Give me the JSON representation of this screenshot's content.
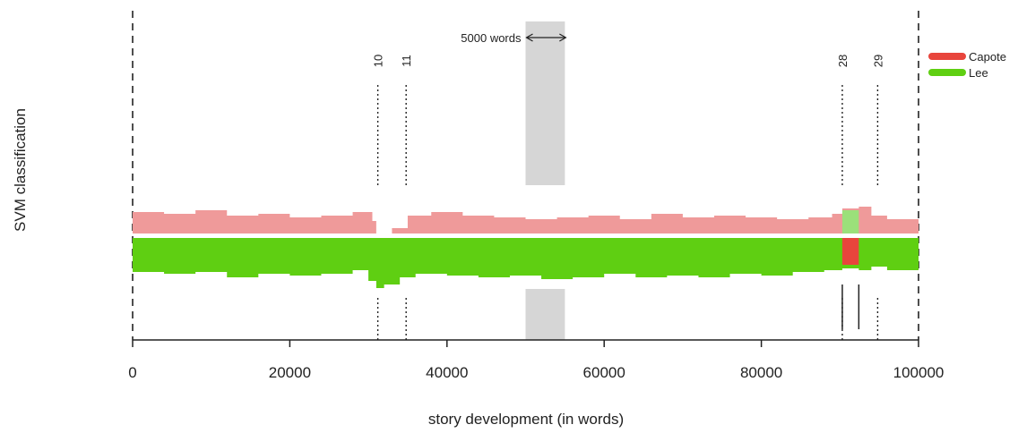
{
  "chart_data": {
    "type": "area",
    "ylabel": "SVM classification",
    "xlabel": "story development (in words)",
    "xlim": [
      0,
      100000
    ],
    "x_ticks": [
      0,
      20000,
      40000,
      60000,
      80000,
      100000
    ],
    "x_tick_labels": [
      "0",
      "20000",
      "40000",
      "60000",
      "80000",
      "100000"
    ],
    "legend": {
      "position": "top-right",
      "entries": [
        {
          "label": "Capote",
          "color": "#e8453c"
        },
        {
          "label": "Lee",
          "color": "#5fcf12"
        }
      ]
    },
    "window_annotation": {
      "label": "5000 words",
      "start": 50000,
      "end": 55000,
      "color": "#d6d6d6"
    },
    "chapter_markers": [
      {
        "label": "10",
        "x": 31200
      },
      {
        "label": "11",
        "x": 34800
      },
      {
        "label": "28",
        "x": 90300
      },
      {
        "label": "29",
        "x": 94800
      }
    ],
    "capote_segment": {
      "start": 90300,
      "end": 92400
    },
    "segment_boundaries": [
      90300,
      92400
    ],
    "series": [
      {
        "name": "Capote",
        "color": "#ef9a9a",
        "x": [
          0,
          4000,
          8000,
          12000,
          16000,
          20000,
          24000,
          28000,
          30500,
          31000,
          33000,
          35000,
          38000,
          42000,
          46000,
          50000,
          54000,
          58000,
          62000,
          66000,
          70000,
          74000,
          78000,
          82000,
          86000,
          89000,
          90300,
          92400,
          94000,
          96000,
          100000
        ],
        "values": [
          0.24,
          0.22,
          0.26,
          0.2,
          0.22,
          0.18,
          0.2,
          0.24,
          0.14,
          0.0,
          0.06,
          0.2,
          0.24,
          0.2,
          0.18,
          0.16,
          0.18,
          0.2,
          0.16,
          0.22,
          0.18,
          0.2,
          0.18,
          0.16,
          0.18,
          0.22,
          0.28,
          0.3,
          0.2,
          0.16,
          0.22
        ]
      },
      {
        "name": "Lee",
        "color": "#5fcf12",
        "x": [
          0,
          4000,
          8000,
          12000,
          16000,
          20000,
          24000,
          28000,
          30000,
          31000,
          32000,
          34000,
          36000,
          40000,
          44000,
          48000,
          52000,
          56000,
          60000,
          64000,
          68000,
          72000,
          76000,
          80000,
          84000,
          88000,
          90300,
          92400,
          94000,
          96000,
          100000
        ],
        "values": [
          0.38,
          0.4,
          0.38,
          0.44,
          0.4,
          0.42,
          0.4,
          0.36,
          0.48,
          0.56,
          0.52,
          0.44,
          0.4,
          0.42,
          0.44,
          0.42,
          0.46,
          0.44,
          0.4,
          0.44,
          0.42,
          0.44,
          0.4,
          0.42,
          0.38,
          0.36,
          0.34,
          0.36,
          0.32,
          0.36,
          0.38
        ]
      }
    ]
  }
}
